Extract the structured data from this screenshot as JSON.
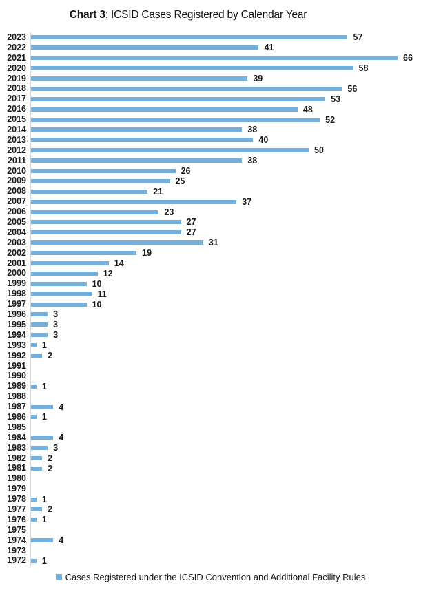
{
  "title": {
    "prefix": "Chart 3",
    "rest": ": ICSID Cases Registered by Calendar Year"
  },
  "legend": {
    "label": "Cases Registered under the ICSID Convention and Additional Facility Rules"
  },
  "colors": {
    "bar": "#72b0dd",
    "axis_line": "#d6d6d6",
    "text": "#1a1a1a"
  },
  "chart_data": {
    "type": "bar",
    "orientation": "horizontal",
    "title": "Chart 3: ICSID Cases Registered by Calendar Year",
    "categories": [
      "2023",
      "2022",
      "2021",
      "2020",
      "2019",
      "2018",
      "2017",
      "2016",
      "2015",
      "2014",
      "2013",
      "2012",
      "2011",
      "2010",
      "2009",
      "2008",
      "2007",
      "2006",
      "2005",
      "2004",
      "2003",
      "2002",
      "2001",
      "2000",
      "1999",
      "1998",
      "1997",
      "1996",
      "1995",
      "1994",
      "1993",
      "1992",
      "1991",
      "1990",
      "1989",
      "1988",
      "1987",
      "1986",
      "1985",
      "1984",
      "1983",
      "1982",
      "1981",
      "1980",
      "1979",
      "1978",
      "1977",
      "1976",
      "1975",
      "1974",
      "1973",
      "1972"
    ],
    "values": [
      57,
      41,
      66,
      58,
      39,
      56,
      53,
      48,
      52,
      38,
      40,
      50,
      38,
      26,
      25,
      21,
      37,
      23,
      27,
      27,
      31,
      19,
      14,
      12,
      10,
      11,
      10,
      3,
      3,
      3,
      1,
      2,
      0,
      0,
      1,
      0,
      4,
      1,
      0,
      4,
      3,
      2,
      2,
      0,
      0,
      1,
      2,
      1,
      0,
      4,
      0,
      1
    ],
    "xlim": [
      0,
      66
    ],
    "grid": false,
    "value_labels": true,
    "legend_position": "bottom",
    "legend_entries": [
      "Cases Registered under the ICSID Convention and Additional Facility Rules"
    ]
  }
}
